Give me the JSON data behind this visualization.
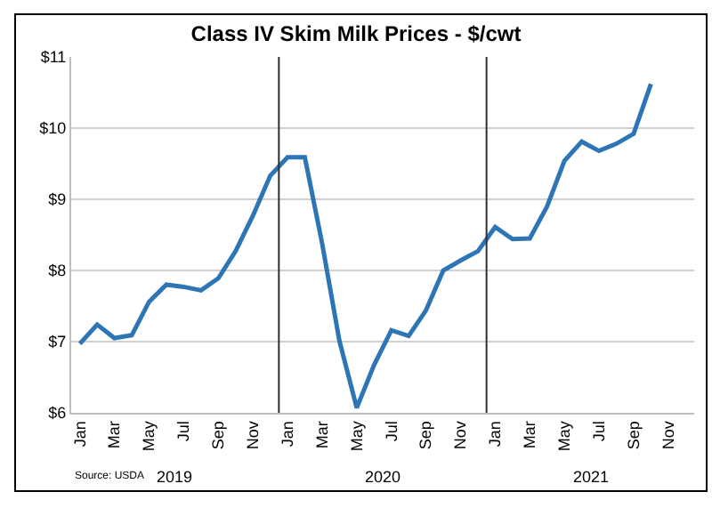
{
  "chart_data": {
    "type": "line",
    "title": "Class IV Skim Milk Prices - $/cwt",
    "categories": [
      "Jan",
      null,
      "Mar",
      null,
      "May",
      null,
      "Jul",
      null,
      "Sep",
      null,
      "Nov",
      null,
      "Jan",
      null,
      "Mar",
      null,
      "May",
      null,
      "Jul",
      null,
      "Sep",
      null,
      "Nov",
      null,
      "Jan",
      null,
      "Mar",
      null,
      "May",
      null,
      "Jul",
      null,
      "Sep",
      null,
      "Nov",
      null
    ],
    "series": [
      {
        "color": "#2e75b6",
        "values": [
          6.97,
          7.24,
          7.05,
          7.09,
          7.56,
          7.8,
          7.77,
          7.72,
          7.89,
          8.27,
          8.77,
          9.33,
          9.59,
          9.59,
          8.38,
          7.01,
          6.07,
          6.67,
          7.16,
          7.08,
          7.44,
          8.0,
          8.14,
          8.27,
          8.61,
          8.44,
          8.45,
          8.9,
          9.54,
          9.81,
          9.68,
          9.78,
          9.92,
          10.62,
          null,
          null
        ]
      }
    ],
    "ylim": [
      6,
      11
    ],
    "yticks": [
      {
        "value": 6,
        "label": "$6"
      },
      {
        "value": 7,
        "label": "$7"
      },
      {
        "value": 8,
        "label": "$8"
      },
      {
        "value": 9,
        "label": "$9"
      },
      {
        "value": 10,
        "label": "$10"
      },
      {
        "value": 11,
        "label": "$11"
      }
    ],
    "grid": "y",
    "marker": "none",
    "line_style": "solid",
    "annotations": [
      "Source: USDA",
      "2019",
      "2020",
      "2021"
    ]
  }
}
